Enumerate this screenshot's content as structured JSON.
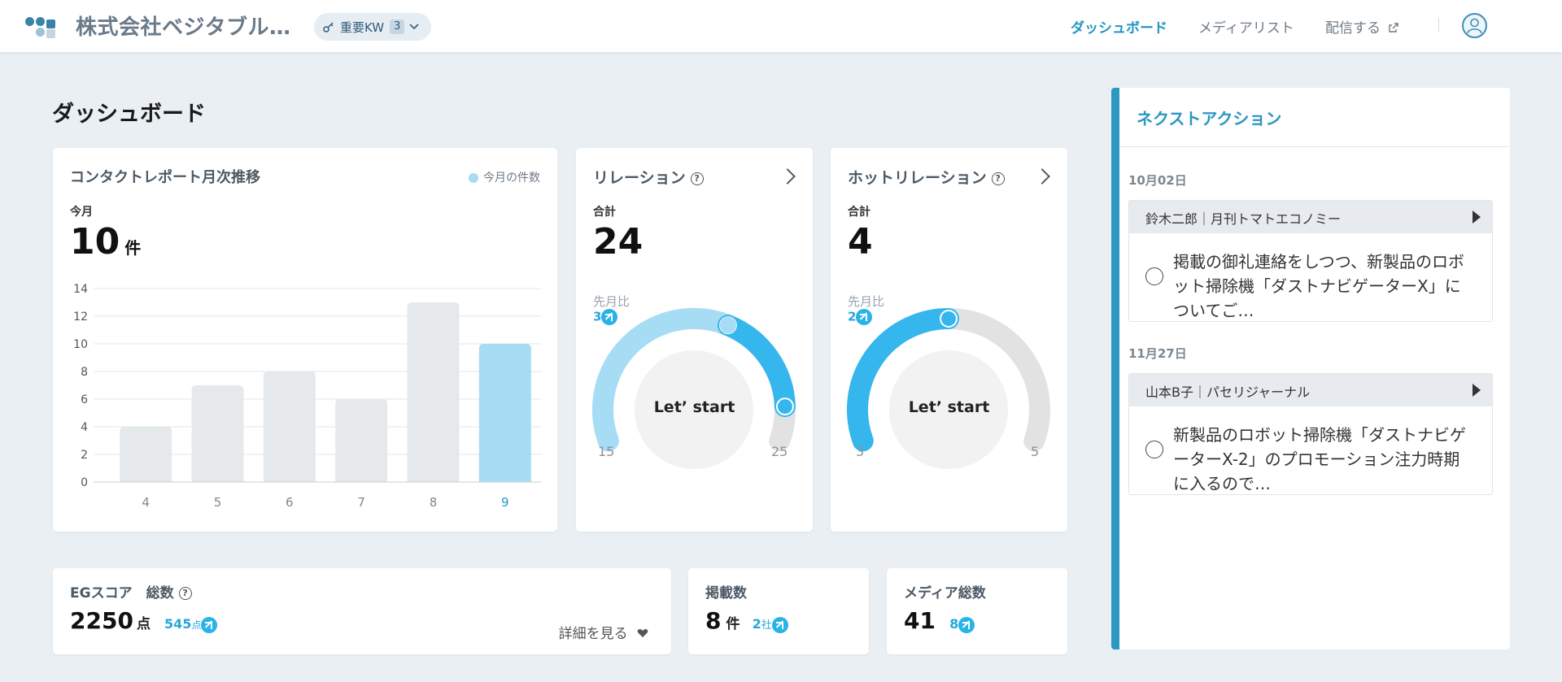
{
  "header": {
    "company": "株式会社ベジタブル…",
    "kw_label": "重要KW",
    "kw_count": "3",
    "nav": {
      "dashboard": "ダッシュボード",
      "media_list": "メディアリスト",
      "distribute": "配信する"
    }
  },
  "page_title": "ダッシュボード",
  "contact_report": {
    "title": "コンタクトレポート月次推移",
    "legend": "今月の件数",
    "this_month_label": "今月",
    "value": "10",
    "unit": "件"
  },
  "chart_data": {
    "type": "bar",
    "categories": [
      "4",
      "5",
      "6",
      "7",
      "8",
      "9"
    ],
    "values": [
      4,
      7,
      8,
      6,
      13,
      10
    ],
    "highlight_index": 5,
    "ylim": [
      0,
      14
    ],
    "yticks": [
      "0",
      "2",
      "4",
      "6",
      "8",
      "10",
      "12",
      "14"
    ],
    "colors": {
      "normal": "#e6e9ec",
      "highlight": "#a7dcf5"
    }
  },
  "relation": {
    "title": "リレーション",
    "total_label": "合計",
    "value": "24",
    "prev_label": "先月比",
    "prev_value": "3",
    "gauge_center": "Let’ start",
    "min": "15",
    "max": "25",
    "gauge_fraction": 0.9,
    "prev_fraction": 0.6
  },
  "hot_relation": {
    "title": "ホットリレーション",
    "total_label": "合計",
    "value": "4",
    "prev_label": "先月比",
    "prev_value": "2",
    "gauge_center": "Let’ start",
    "min": "3",
    "max": "5",
    "gauge_fraction": 0.5
  },
  "eg_score": {
    "title": "EGスコア　総数",
    "value": "2250",
    "unit": "点",
    "delta": "545",
    "delta_unit": "点",
    "detail": "詳細を見る"
  },
  "publications": {
    "title": "掲載数",
    "value": "8",
    "unit": "件",
    "delta": "2",
    "delta_unit": "社"
  },
  "media_total": {
    "title": "メディア総数",
    "value": "41",
    "delta": "8"
  },
  "next_action": {
    "title": "ネクストアクション",
    "groups": [
      {
        "date": "10月02日",
        "head": "鈴木二郎｜月刊トマトエコノミー",
        "text": "掲載の御礼連絡をしつつ、新製品のロボット掃除機「ダストナビゲーターX」についてご…"
      },
      {
        "date": "11月27日",
        "head": "山本B子｜パセリジャーナル",
        "text": "新製品のロボット掃除機「ダストナビゲーターX-2」のプロモーション注力時期に入るので…"
      }
    ]
  },
  "colors": {
    "accent": "#2a98c0",
    "gauge_light": "#a7dcf5",
    "gauge_dark": "#35b6ec",
    "gauge_gray": "#e2e2e2"
  }
}
